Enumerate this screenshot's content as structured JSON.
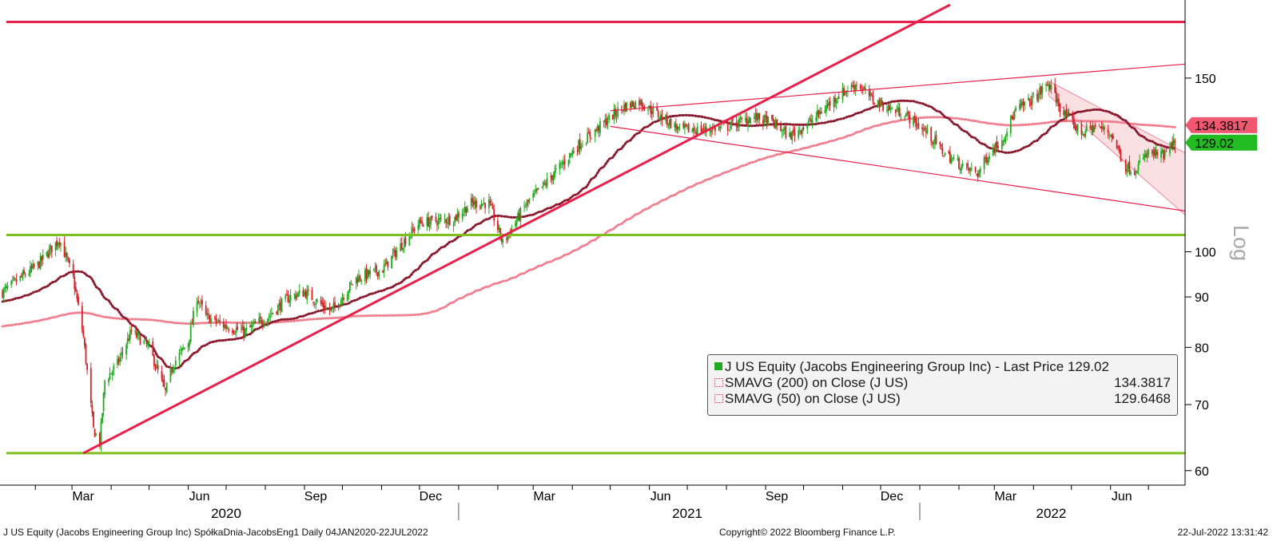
{
  "chart_data": {
    "type": "candlestick",
    "scale": "log",
    "scale_label": "Log",
    "y_ticks": [
      60,
      70,
      80,
      90,
      100,
      150
    ],
    "ylim": [
      58,
      180
    ],
    "x_range": [
      "2020-01-04",
      "2022-07-22"
    ],
    "x_ticks": [
      {
        "date": "2020-03-01",
        "label": "Mar"
      },
      {
        "date": "2020-06-01",
        "label": "Jun"
      },
      {
        "date": "2020-09-01",
        "label": "Sep"
      },
      {
        "date": "2020-12-01",
        "label": "Dec"
      },
      {
        "date": "2021-03-01",
        "label": "Mar"
      },
      {
        "date": "2021-06-01",
        "label": "Jun"
      },
      {
        "date": "2021-09-01",
        "label": "Sep"
      },
      {
        "date": "2021-12-01",
        "label": "Dec"
      },
      {
        "date": "2022-03-01",
        "label": "Mar"
      },
      {
        "date": "2022-06-01",
        "label": "Jun"
      }
    ],
    "year_labels": [
      {
        "date": "2020-07-01",
        "label": "2020"
      },
      {
        "date": "2021-07-01",
        "label": "2021"
      },
      {
        "date": "2022-04-15",
        "label": "2022"
      }
    ],
    "year_dividers": [
      "2021-01-01",
      "2022-01-01"
    ],
    "price_anchors": [
      [
        "2020-01-06",
        91
      ],
      [
        "2020-01-20",
        94
      ],
      [
        "2020-02-03",
        97
      ],
      [
        "2020-02-20",
        103
      ],
      [
        "2020-03-02",
        94
      ],
      [
        "2020-03-10",
        82
      ],
      [
        "2020-03-18",
        66
      ],
      [
        "2020-03-23",
        64
      ],
      [
        "2020-03-27",
        74
      ],
      [
        "2020-04-06",
        77
      ],
      [
        "2020-04-17",
        83
      ],
      [
        "2020-05-01",
        80
      ],
      [
        "2020-05-14",
        72
      ],
      [
        "2020-05-20",
        77
      ],
      [
        "2020-06-01",
        81
      ],
      [
        "2020-06-08",
        90
      ],
      [
        "2020-06-15",
        86
      ],
      [
        "2020-07-01",
        84
      ],
      [
        "2020-07-16",
        83
      ],
      [
        "2020-08-03",
        86
      ],
      [
        "2020-08-20",
        90
      ],
      [
        "2020-09-01",
        91
      ],
      [
        "2020-09-22",
        87
      ],
      [
        "2020-10-12",
        94
      ],
      [
        "2020-11-02",
        96
      ],
      [
        "2020-11-20",
        103
      ],
      [
        "2020-12-01",
        107
      ],
      [
        "2020-12-28",
        108
      ],
      [
        "2021-01-11",
        112
      ],
      [
        "2021-01-25",
        112
      ],
      [
        "2021-02-05",
        102
      ],
      [
        "2021-02-22",
        111
      ],
      [
        "2021-03-15",
        119
      ],
      [
        "2021-04-05",
        128
      ],
      [
        "2021-04-26",
        135
      ],
      [
        "2021-05-10",
        140
      ],
      [
        "2021-05-24",
        142
      ],
      [
        "2021-06-07",
        138
      ],
      [
        "2021-06-25",
        133
      ],
      [
        "2021-07-15",
        133
      ],
      [
        "2021-08-02",
        134
      ],
      [
        "2021-08-23",
        137
      ],
      [
        "2021-09-07",
        135
      ],
      [
        "2021-09-20",
        131
      ],
      [
        "2021-10-08",
        136
      ],
      [
        "2021-10-28",
        144
      ],
      [
        "2021-11-12",
        148
      ],
      [
        "2021-11-24",
        143
      ],
      [
        "2021-12-06",
        140
      ],
      [
        "2021-12-20",
        138
      ],
      [
        "2022-01-07",
        132
      ],
      [
        "2022-01-20",
        126
      ],
      [
        "2022-02-04",
        122
      ],
      [
        "2022-02-16",
        120
      ],
      [
        "2022-02-25",
        126
      ],
      [
        "2022-03-07",
        130
      ],
      [
        "2022-03-18",
        139
      ],
      [
        "2022-04-01",
        143
      ],
      [
        "2022-04-13",
        148
      ],
      [
        "2022-04-25",
        138
      ],
      [
        "2022-05-09",
        132
      ],
      [
        "2022-05-20",
        134
      ],
      [
        "2022-06-01",
        132
      ],
      [
        "2022-06-13",
        122
      ],
      [
        "2022-06-20",
        121
      ],
      [
        "2022-07-01",
        126
      ],
      [
        "2022-07-13",
        125
      ],
      [
        "2022-07-22",
        129
      ]
    ],
    "series": [
      {
        "name": "J US Equity (Jacobs Engineering Group Inc) - Last Price",
        "role": "price",
        "last_value": 129.02,
        "color": "#22aa22"
      },
      {
        "name": "SMAVG (200)  on Close (J US)",
        "role": "sma200",
        "last_value": 134.3817,
        "color": "#f08090"
      },
      {
        "name": "SMAVG (50)  on Close (J US)",
        "role": "sma50",
        "last_value": 129.6468,
        "color": "#8b1a2e"
      }
    ],
    "candle_colors": {
      "up": "#22aa22",
      "down": "#d42027"
    },
    "annotations": {
      "horizontal_lines": [
        {
          "value": 171,
          "color": "#e8204a"
        },
        {
          "value": 104,
          "color": "#7dc01e"
        },
        {
          "value": 62.5,
          "color": "#7dc01e"
        }
      ],
      "trend_lines": [
        {
          "from": [
            "2020-03-10",
            62.5
          ],
          "to": [
            "2022-01-25",
            178
          ],
          "color": "#e8204a",
          "weight": "thick"
        },
        {
          "from": [
            "2021-05-01",
            139
          ],
          "to": [
            "2022-07-30",
            155
          ],
          "color": "#e8204a",
          "weight": "thin"
        },
        {
          "from": [
            "2021-05-01",
            134
          ],
          "to": [
            "2022-07-30",
            110
          ],
          "color": "#e8204a",
          "weight": "thin"
        }
      ],
      "channel": {
        "upper": [
          [
            "2022-04-13",
            149
          ],
          [
            "2022-07-30",
            126
          ]
        ],
        "lower": [
          [
            "2022-04-13",
            144
          ],
          [
            "2022-07-30",
            109
          ]
        ],
        "color": "#f6c4cc"
      }
    },
    "last_value_tags": [
      {
        "text": "134.3817",
        "value": 134.3817,
        "color": "#f05870"
      },
      {
        "text": "129.02",
        "value": 129.02,
        "color": "#22bb22"
      }
    ]
  },
  "legend": {
    "rows": [
      {
        "label": "J US Equity (Jacobs Engineering Group Inc) - Last Price 129.02",
        "value": ""
      },
      {
        "label": "SMAVG (200)  on Close (J US)",
        "value": "134.3817"
      },
      {
        "label": "SMAVG (50)  on Close (J US)",
        "value": "129.6468"
      }
    ]
  },
  "footer": {
    "left": "J US Equity (Jacobs Engineering Group Inc) SpółkaDnia-JacobsEng1  Daily 04JAN2020-22JUL2022",
    "center": "Copyright© 2022 Bloomberg Finance L.P.",
    "right": "22-Jul-2022 13:31:42"
  }
}
